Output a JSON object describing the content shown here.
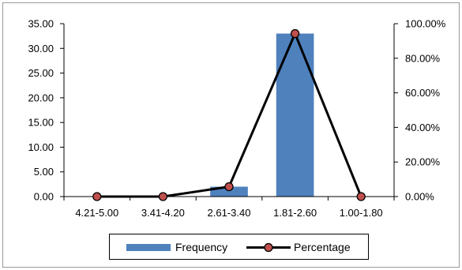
{
  "chart_data": {
    "type": "bar",
    "categories": [
      "4.21-5.00",
      "3.41-4.20",
      "2.61-3.40",
      "1.81-2.60",
      "1.00-1.80"
    ],
    "series": [
      {
        "name": "Frequency",
        "type": "bar",
        "axis": "left",
        "values": [
          0,
          0,
          2,
          33,
          0
        ],
        "color": "#4F81BD"
      },
      {
        "name": "Percentage",
        "type": "line",
        "axis": "right",
        "values": [
          0.0,
          0.0,
          5.71,
          94.29,
          0.0
        ],
        "color": "#000000",
        "marker_color": "#C0504D"
      }
    ],
    "y_left": {
      "range": [
        0,
        35
      ],
      "ticks": [
        "0.00",
        "5.00",
        "10.00",
        "15.00",
        "20.00",
        "25.00",
        "30.00",
        "35.00"
      ]
    },
    "y_right": {
      "range": [
        0,
        100
      ],
      "ticks": [
        "0.00%",
        "20.00%",
        "40.00%",
        "60.00%",
        "80.00%",
        "100.00%"
      ]
    },
    "grid": false,
    "legend_position": "bottom"
  }
}
